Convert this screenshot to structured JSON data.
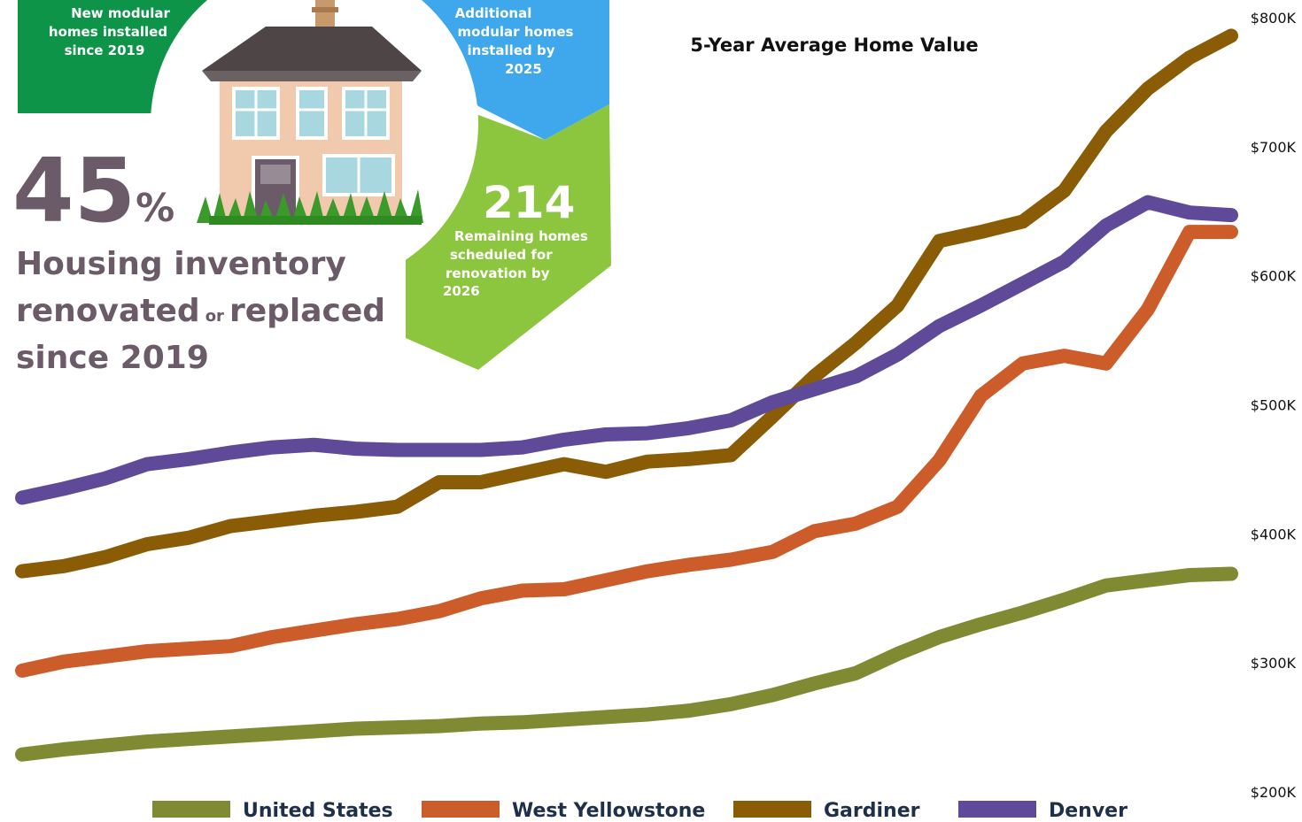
{
  "infographic": {
    "new_modular": [
      "New modular",
      "homes installed",
      "since 2019"
    ],
    "additional_modular": [
      "Additional",
      "modular homes",
      "installed by",
      "2025"
    ],
    "remaining": {
      "value": "214",
      "lines": [
        "Remaining homes",
        "scheduled for",
        "renovation by",
        "2026"
      ]
    },
    "inventory": {
      "value": "45",
      "unit": "%",
      "line1": "Housing inventory",
      "line2a": "renovated",
      "line2b": "or",
      "line2c": "replaced",
      "line3": "since 2019"
    }
  },
  "chart_data": {
    "type": "line",
    "title": "5-Year Average Home Value",
    "categories": [
      null,
      null,
      null,
      null,
      null,
      null,
      null,
      null,
      null,
      null,
      null,
      null,
      null,
      null,
      null,
      null,
      null,
      null,
      null,
      null,
      null,
      null,
      null,
      null,
      null,
      null,
      null,
      null,
      null,
      null
    ],
    "series": [
      {
        "name": "United States",
        "color": "#7f8a33",
        "values": [
          229000,
          233000,
          236000,
          239000,
          241000,
          243000,
          245000,
          247000,
          249000,
          250000,
          251000,
          253000,
          254000,
          256000,
          258000,
          260000,
          263000,
          268000,
          275000,
          284000,
          292000,
          307000,
          320000,
          330000,
          339000,
          349000,
          360000,
          364000,
          368000,
          369000
        ]
      },
      {
        "name": "West Yellowstone",
        "color": "#cc5c2a",
        "values": [
          294000,
          301000,
          305000,
          309000,
          311000,
          313000,
          320000,
          325000,
          330000,
          334000,
          340000,
          350000,
          356000,
          357000,
          364000,
          371000,
          376000,
          380000,
          386000,
          402000,
          408000,
          421000,
          457000,
          507000,
          532000,
          538000,
          532000,
          574000,
          634000,
          634000
        ]
      },
      {
        "name": "Gardiner",
        "color": "#8a5c06",
        "values": [
          371000,
          375000,
          382000,
          392000,
          397000,
          406000,
          410000,
          414000,
          417000,
          421000,
          440000,
          440000,
          447000,
          454000,
          448000,
          456000,
          458000,
          461000,
          491000,
          522000,
          548000,
          577000,
          627000,
          634000,
          642000,
          666000,
          712000,
          745000,
          769000,
          786000
        ]
      },
      {
        "name": "Denver",
        "color": "#5e4a98",
        "values": [
          428000,
          435000,
          443000,
          454000,
          458000,
          463000,
          467000,
          469000,
          466000,
          465000,
          465000,
          465000,
          467000,
          473000,
          477000,
          478000,
          482000,
          488000,
          502000,
          512000,
          522000,
          539000,
          561000,
          577000,
          594000,
          611000,
          639000,
          657000,
          649000,
          647000
        ]
      }
    ],
    "ylim": [
      200000,
      800000
    ],
    "yticks": [
      {
        "value": 200000,
        "label": "$200K"
      },
      {
        "value": 300000,
        "label": "$300K"
      },
      {
        "value": 400000,
        "label": "$400K"
      },
      {
        "value": 500000,
        "label": "$500K"
      },
      {
        "value": 600000,
        "label": "$600K"
      },
      {
        "value": 700000,
        "label": "$700K"
      },
      {
        "value": 800000,
        "label": "$800K"
      }
    ],
    "grid": false,
    "legend": "bottom"
  }
}
